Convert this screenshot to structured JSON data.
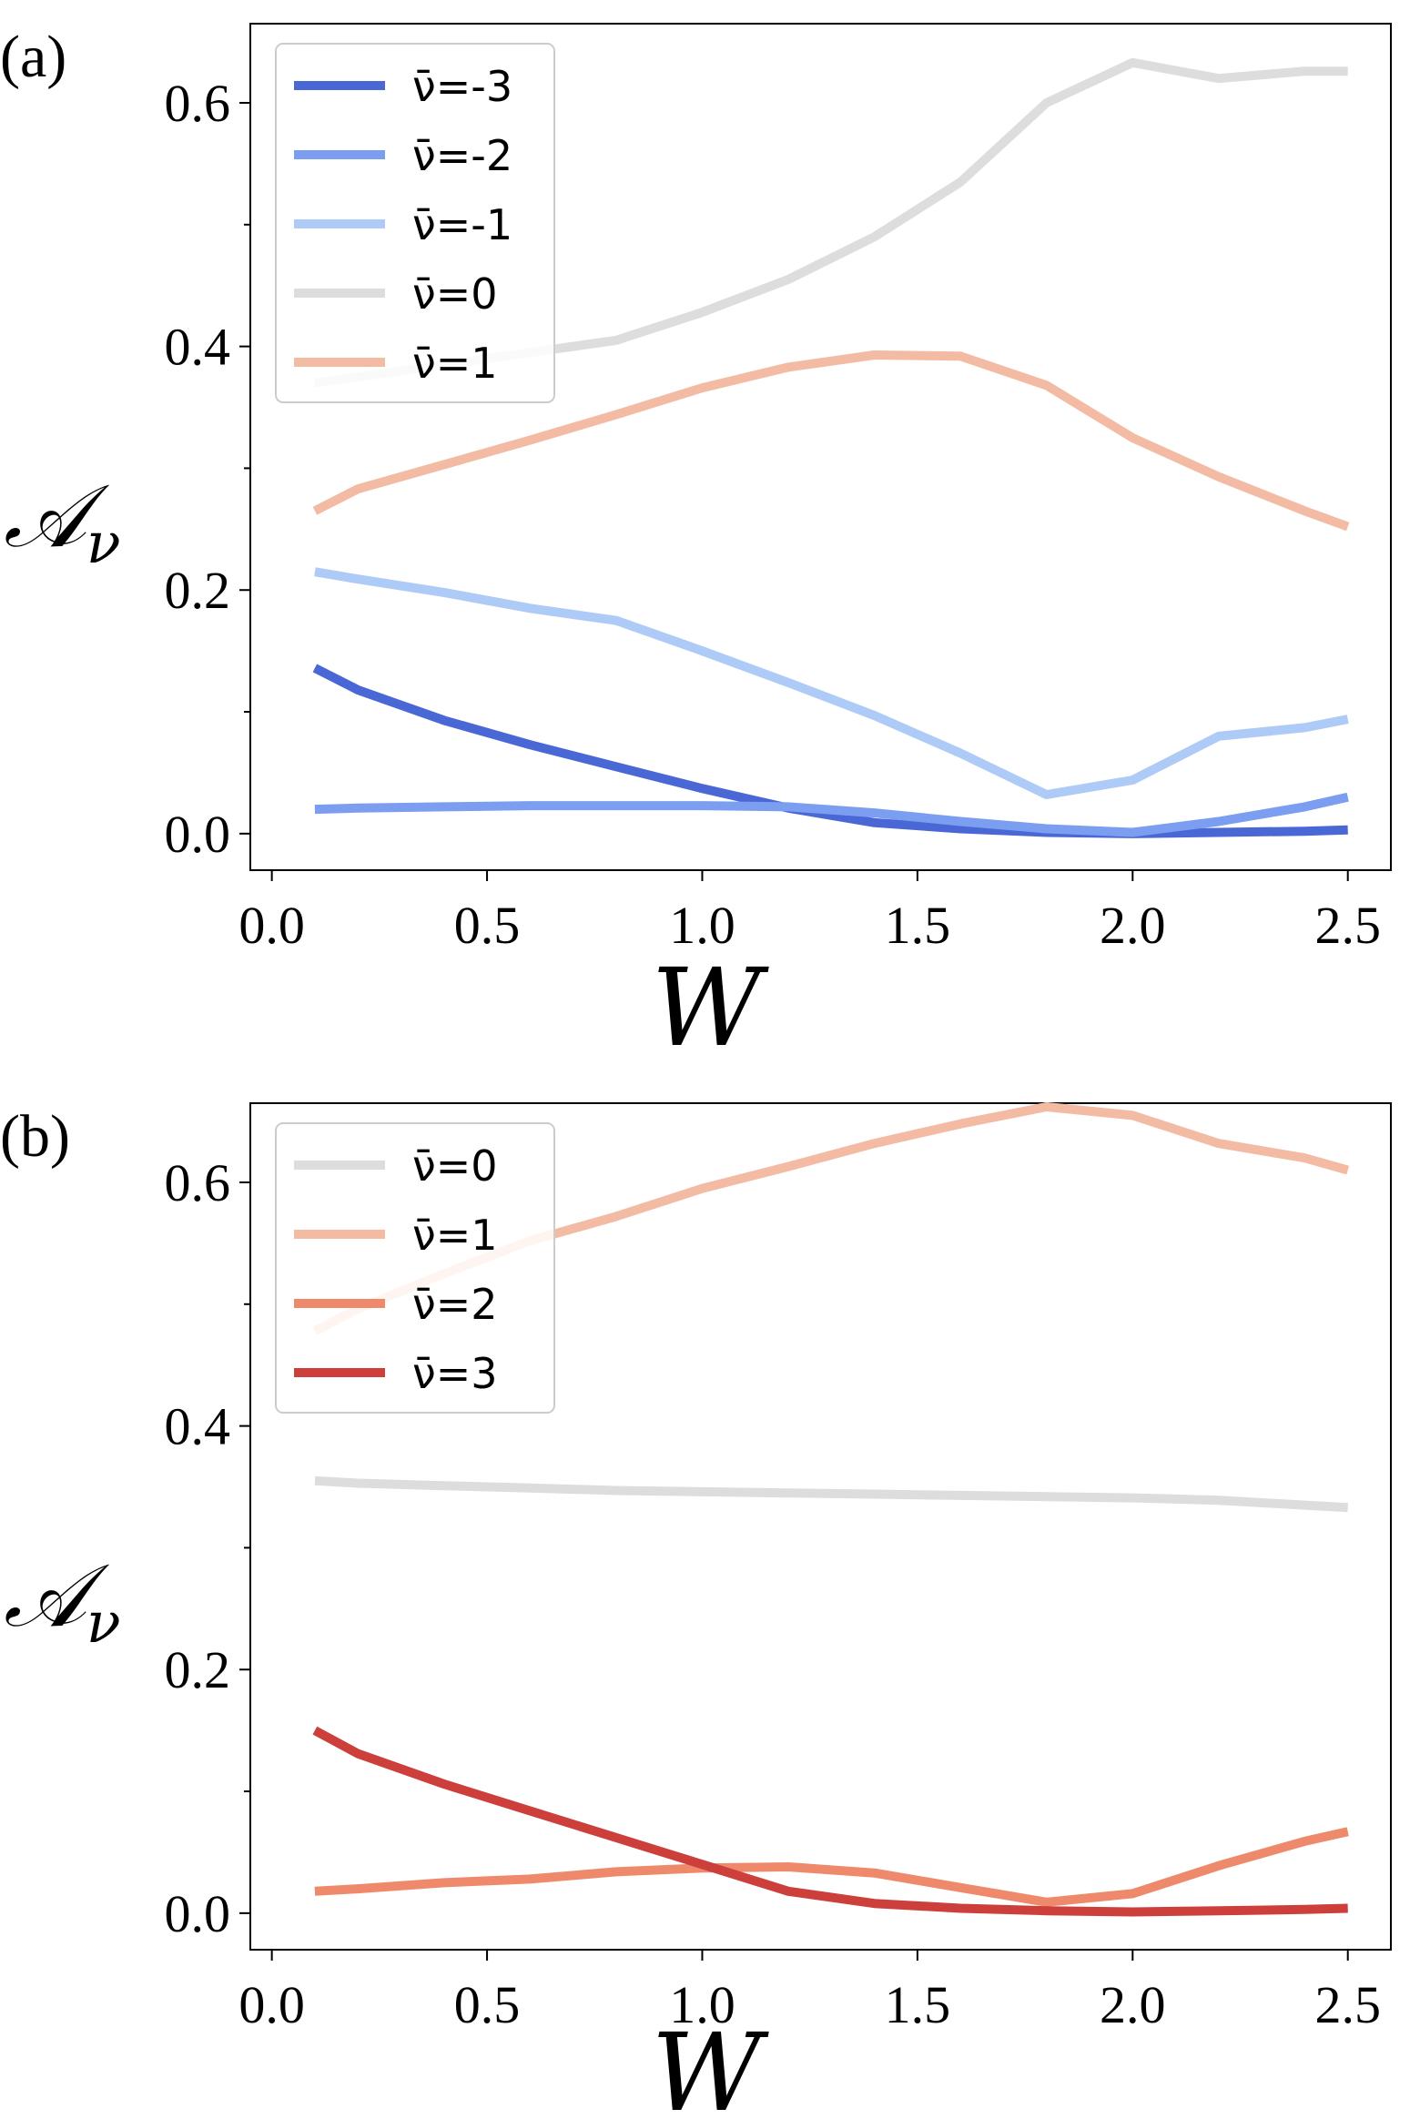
{
  "chart_data": [
    {
      "type": "line",
      "panel_label": "(a)",
      "xlabel": "W",
      "ylabel": "𝒜",
      "ylabel_sub": "ν",
      "xlim": [
        -0.05,
        2.6
      ],
      "ylim": [
        -0.03,
        0.665
      ],
      "xticks": [
        "0.0",
        "0.5",
        "1.0",
        "1.5",
        "2.0",
        "2.5"
      ],
      "yticks": [
        "0.0",
        "0.2",
        "0.4",
        "0.6"
      ],
      "legend_position": "top-left",
      "x": [
        0.1,
        0.2,
        0.4,
        0.6,
        0.8,
        1.0,
        1.2,
        1.4,
        1.6,
        1.8,
        2.0,
        2.2,
        2.4,
        2.5
      ],
      "series": [
        {
          "name": "ν̄=-3",
          "color": "#4a67d6",
          "values": [
            0.136,
            0.118,
            0.093,
            0.073,
            0.055,
            0.037,
            0.021,
            0.009,
            0.004,
            0.001,
            0.0,
            0.001,
            0.002,
            0.003
          ]
        },
        {
          "name": "ν̄=-2",
          "color": "#7b9ef1",
          "values": [
            0.02,
            0.021,
            0.022,
            0.023,
            0.023,
            0.023,
            0.022,
            0.017,
            0.01,
            0.004,
            0.001,
            0.01,
            0.022,
            0.03
          ]
        },
        {
          "name": "ν̄=-1",
          "color": "#aecbf7",
          "values": [
            0.215,
            0.209,
            0.198,
            0.185,
            0.175,
            0.15,
            0.124,
            0.097,
            0.066,
            0.032,
            0.044,
            0.08,
            0.087,
            0.094
          ]
        },
        {
          "name": "ν̄=0",
          "color": "#dddddd",
          "values": [
            0.37,
            0.375,
            0.385,
            0.395,
            0.405,
            0.428,
            0.455,
            0.49,
            0.535,
            0.6,
            0.633,
            0.62,
            0.626,
            0.626
          ]
        },
        {
          "name": "ν̄=1",
          "color": "#f3bba4",
          "values": [
            0.265,
            0.283,
            0.303,
            0.323,
            0.344,
            0.366,
            0.383,
            0.393,
            0.392,
            0.368,
            0.325,
            0.293,
            0.265,
            0.252
          ]
        }
      ]
    },
    {
      "type": "line",
      "panel_label": "(b)",
      "xlabel": "W",
      "ylabel": "𝒜",
      "ylabel_sub": "ν",
      "xlim": [
        -0.05,
        2.6
      ],
      "ylim": [
        -0.03,
        0.665
      ],
      "xticks": [
        "0.0",
        "0.5",
        "1.0",
        "1.5",
        "2.0",
        "2.5"
      ],
      "yticks": [
        "0.0",
        "0.2",
        "0.4",
        "0.6"
      ],
      "legend_position": "top-left",
      "x": [
        0.1,
        0.2,
        0.4,
        0.6,
        0.8,
        1.0,
        1.2,
        1.4,
        1.6,
        1.8,
        2.0,
        2.2,
        2.4,
        2.5
      ],
      "series": [
        {
          "name": "ν̄=0",
          "color": "#dddddd",
          "values": [
            0.355,
            0.353,
            0.351,
            0.349,
            0.347,
            0.346,
            0.345,
            0.344,
            0.343,
            0.342,
            0.341,
            0.339,
            0.335,
            0.333
          ]
        },
        {
          "name": "ν̄=1",
          "color": "#f3bba4",
          "values": [
            0.478,
            0.496,
            0.525,
            0.552,
            0.572,
            0.595,
            0.613,
            0.632,
            0.648,
            0.662,
            0.655,
            0.632,
            0.62,
            0.61
          ]
        },
        {
          "name": "ν̄=2",
          "color": "#ee8a6b",
          "values": [
            0.018,
            0.02,
            0.025,
            0.028,
            0.034,
            0.037,
            0.038,
            0.033,
            0.021,
            0.009,
            0.016,
            0.039,
            0.059,
            0.067
          ]
        },
        {
          "name": "ν̄=3",
          "color": "#cc3f3a",
          "values": [
            0.15,
            0.131,
            0.106,
            0.084,
            0.062,
            0.04,
            0.018,
            0.008,
            0.004,
            0.002,
            0.001,
            0.002,
            0.003,
            0.004
          ]
        }
      ]
    }
  ]
}
